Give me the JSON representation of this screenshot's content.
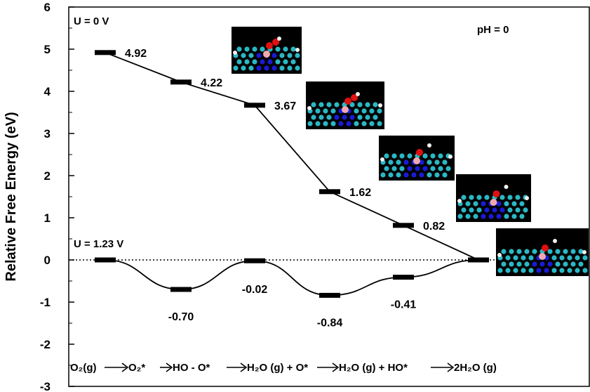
{
  "chart_data": {
    "type": "line",
    "ylabel": "Relative Free Energy (eV)",
    "ylim": [
      -3,
      6
    ],
    "y_ticks": [
      "-3",
      "-2",
      "-1",
      "0",
      "1",
      "2",
      "3",
      "4",
      "5",
      "6"
    ],
    "grid": false,
    "series": [
      {
        "name": "U = 0 V",
        "x": [
          1,
          2,
          3,
          4,
          5,
          6
        ],
        "values": [
          4.92,
          4.22,
          3.67,
          1.62,
          0.82,
          0.0
        ],
        "labels": [
          "4.92",
          "4.22",
          "3.67",
          "1.62",
          "0.82",
          ""
        ]
      },
      {
        "name": "U = 1.23 V",
        "x": [
          1,
          2,
          3,
          4,
          5,
          6
        ],
        "values": [
          0.0,
          -0.7,
          -0.02,
          -0.84,
          -0.41,
          0.0
        ],
        "labels": [
          "",
          "-0.70",
          "-0.02",
          "-0.84",
          "-0.41",
          ""
        ]
      }
    ],
    "annotations": {
      "ph": "pH = 0"
    },
    "reaction_steps": [
      "O₂(g)",
      "O₂*",
      "HO - O*",
      "H₂O (g) + O*",
      "H₂O (g) + HO*",
      "2H₂O (g)"
    ],
    "colors": {
      "axis": "#000000",
      "atom_c": "#2ab8c4",
      "atom_n": "#1a1ad6",
      "atom_o": "#e01010",
      "atom_h": "#f0f0f0",
      "atom_b": "#f0a8b0"
    }
  }
}
